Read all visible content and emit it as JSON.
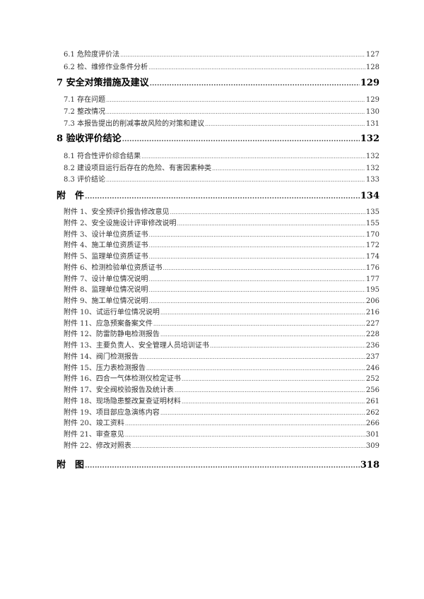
{
  "toc": [
    {
      "level": 2,
      "title": "6.1 危险度评价法",
      "page": "127"
    },
    {
      "level": 2,
      "title": "6.2 检、维修作业条件分析",
      "page": "128"
    },
    {
      "level": 1,
      "title": "7  安全对策措施及建议",
      "page": "129"
    },
    {
      "level": 2,
      "title": "7.1 存在问题",
      "page": "129"
    },
    {
      "level": 2,
      "title": "7.2 整改情况",
      "page": "130"
    },
    {
      "level": 2,
      "title": "7.3 本报告提出的削减事故风险的对策和建议",
      "page": "131"
    },
    {
      "level": 1,
      "title": "8  验收评价结论",
      "page": "132"
    },
    {
      "level": 2,
      "title": "8.1 符合性评价综合结果",
      "page": "132"
    },
    {
      "level": 2,
      "title": "8.2 建设项目运行后存在的危险、有害因素种类",
      "page": "132"
    },
    {
      "level": 2,
      "title": "8.3 评价结论",
      "page": "133"
    },
    {
      "level": 1,
      "title": "附　件",
      "page": "134"
    },
    {
      "level": 2,
      "title": "附件 1、安全预评价报告修改意见",
      "page": "135"
    },
    {
      "level": 2,
      "title": "附件 2、安全设施设计评审修改说明",
      "page": "155"
    },
    {
      "level": 2,
      "title": "附件 3、设计单位资质证书",
      "page": "170"
    },
    {
      "level": 2,
      "title": "附件 4、施工单位资质证书",
      "page": "172"
    },
    {
      "level": 2,
      "title": "附件 5、监理单位资质证书",
      "page": "174"
    },
    {
      "level": 2,
      "title": "附件 6、检测检验单位资质证书",
      "page": "176"
    },
    {
      "level": 2,
      "title": "附件 7、设计单位情况说明",
      "page": "177"
    },
    {
      "level": 2,
      "title": "附件 8、监理单位情况说明",
      "page": "195"
    },
    {
      "level": 2,
      "title": "附件 9、施工单位情况说明",
      "page": "206"
    },
    {
      "level": 2,
      "title": "附件 10、试运行单位情况说明",
      "page": "216"
    },
    {
      "level": 2,
      "title": "附件 11、应急预案备案文件",
      "page": "227"
    },
    {
      "level": 2,
      "title": "附件 12、防雷防静电检测报告",
      "page": "228"
    },
    {
      "level": 2,
      "title": "附件 13、主要负责人、安全管理人员培训证书",
      "page": "236"
    },
    {
      "level": 2,
      "title": "附件 14、阀门检测报告",
      "page": "237"
    },
    {
      "level": 2,
      "title": "附件 15、压力表检测报告",
      "page": "246"
    },
    {
      "level": 2,
      "title": "附件 16、四合一气体检测仪检定证书",
      "page": "252"
    },
    {
      "level": 2,
      "title": "附件 17、安全阀校验报告及统计表",
      "page": "256"
    },
    {
      "level": 2,
      "title": "附件 18、现场隐患整改复查证明材料",
      "page": "261"
    },
    {
      "level": 2,
      "title": "附件 19、项目部应急演练内容",
      "page": "262"
    },
    {
      "level": 2,
      "title": "附件 20、竣工资料",
      "page": "266"
    },
    {
      "level": 2,
      "title": "附件 21、审查意见",
      "page": "301"
    },
    {
      "level": 2,
      "title": "附件 22、修改对照表",
      "page": "309"
    },
    {
      "level": 1,
      "title": "附　图",
      "page": "318"
    }
  ]
}
